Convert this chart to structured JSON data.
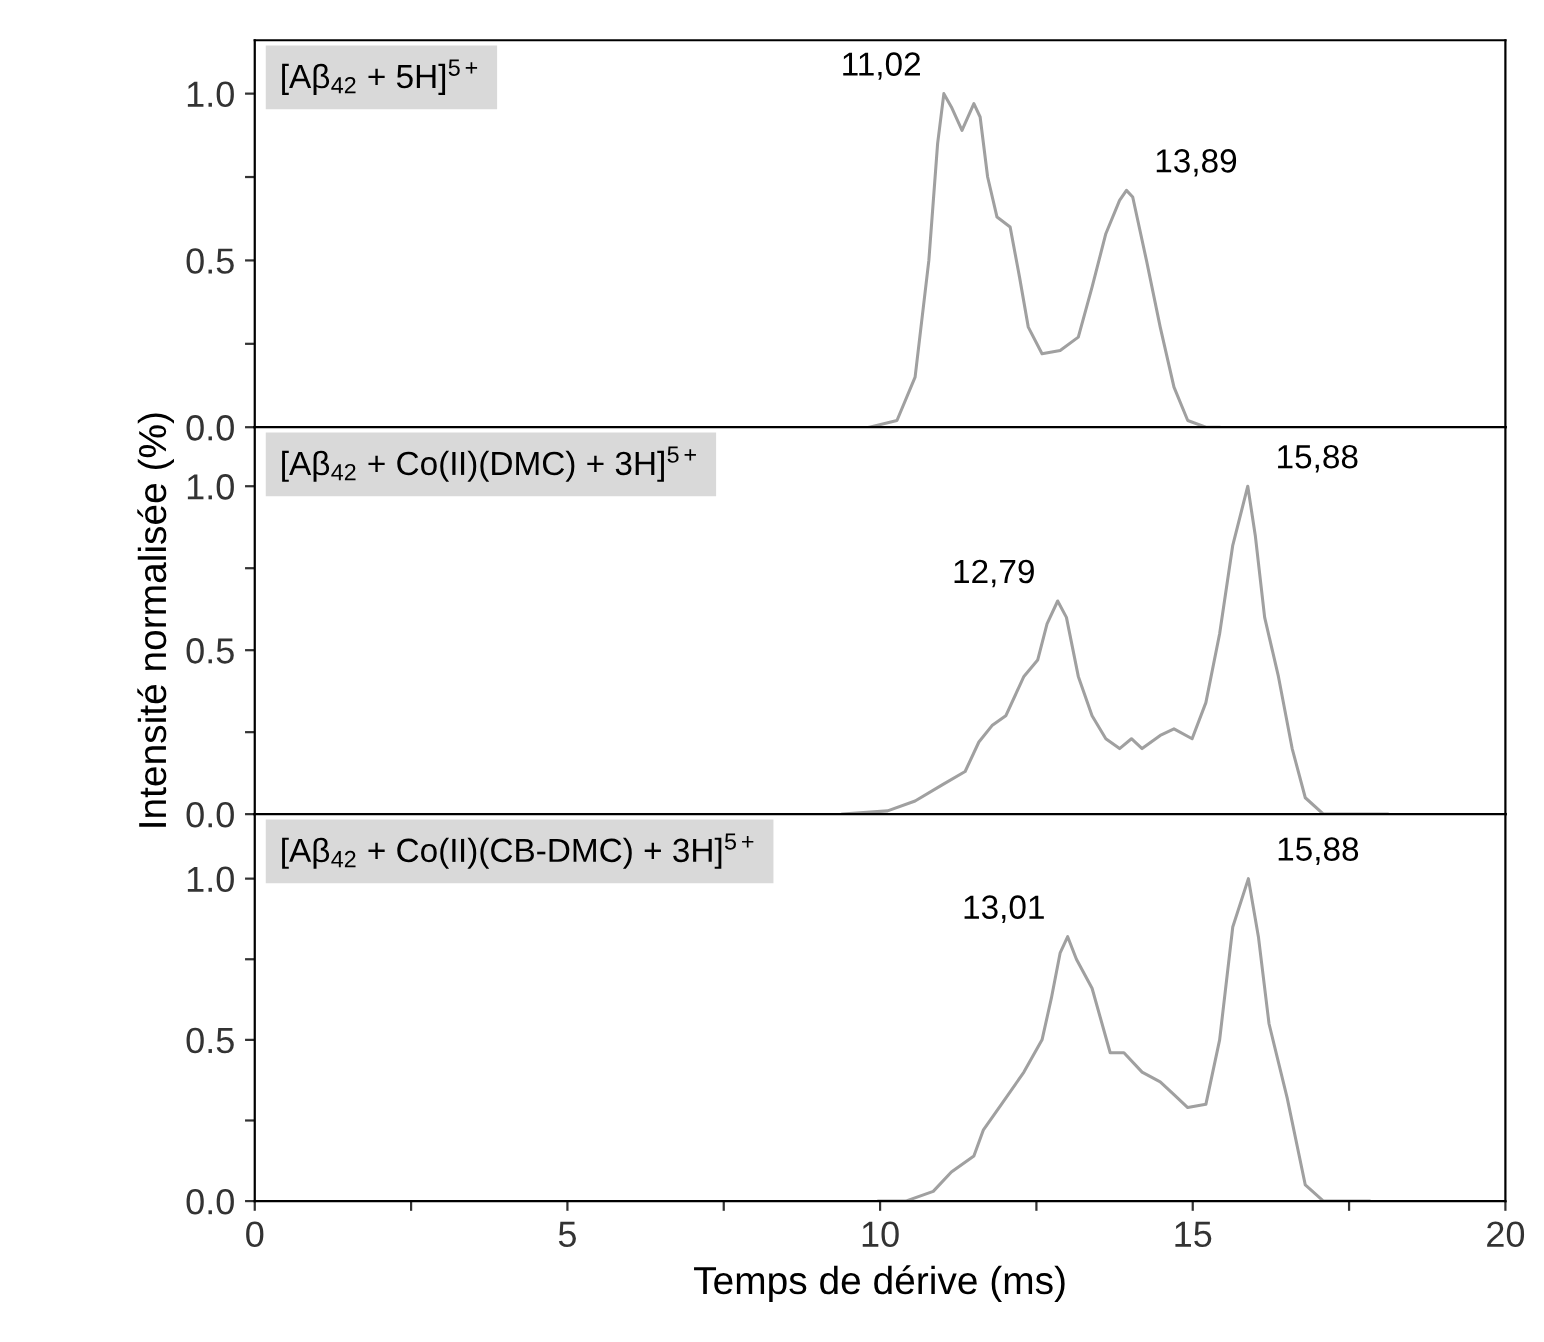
{
  "chart_data": [
    {
      "type": "line",
      "tick_labels": "y",
      "xlim": [
        0,
        20
      ],
      "ylim": [
        0,
        1.16
      ],
      "yticks": [
        {
          "value": 0,
          "label": "0.0"
        },
        {
          "value": 0.25,
          "label": null
        },
        {
          "value": 0.5,
          "label": "0.5"
        },
        {
          "value": 0.75,
          "label": null
        },
        {
          "value": 1,
          "label": "1.0"
        }
      ],
      "annotations": [
        "[Aβ$_{42}$ + 5H]$^{5+}$",
        {
          "text": "11,02",
          "x": 11.02,
          "y": 1.0
        },
        {
          "text": "13,89",
          "x": 13.94,
          "y": 0.71
        }
      ],
      "series": [
        {
          "color": "#a0a0a0",
          "x": [
            9.83,
            10.27,
            10.56,
            10.78,
            10.92,
            11.02,
            11.14,
            11.31,
            11.5,
            11.6,
            11.72,
            11.87,
            12.08,
            12.23,
            12.37,
            12.59,
            12.88,
            13.17,
            13.39,
            13.61,
            13.83,
            13.94,
            14.04,
            14.26,
            14.48,
            14.7,
            14.92,
            15.21,
            15.42
          ],
          "values": [
            0,
            0.02,
            0.15,
            0.5,
            0.85,
            1.0,
            0.96,
            0.89,
            0.97,
            0.93,
            0.75,
            0.63,
            0.6,
            0.45,
            0.3,
            0.22,
            0.23,
            0.27,
            0.42,
            0.58,
            0.68,
            0.71,
            0.69,
            0.5,
            0.3,
            0.12,
            0.02,
            0,
            0
          ]
        }
      ]
    },
    {
      "type": "line",
      "tick_labels": "y",
      "xlim": [
        0,
        20
      ],
      "ylim": [
        0,
        1.18
      ],
      "ylabel": "Intensité normalisée (%)",
      "yticks": [
        {
          "value": 0,
          "label": "0.0"
        },
        {
          "value": 0.25,
          "label": null
        },
        {
          "value": 0.5,
          "label": "0.5"
        },
        {
          "value": 0.75,
          "label": null
        },
        {
          "value": 1,
          "label": "1.0"
        }
      ],
      "annotations": [
        "[Aβ$_{42}$ + Co(II)(DMC) + 3H]$^{5+}$",
        {
          "text": "12,79",
          "x": 12.84,
          "y": 0.65
        },
        {
          "text": "15,88",
          "x": 15.88,
          "y": 1.0
        }
      ],
      "series": [
        {
          "color": "#a0a0a0",
          "x": [
            9.4,
            10.12,
            10.56,
            11.0,
            11.36,
            11.58,
            11.79,
            12.01,
            12.3,
            12.52,
            12.67,
            12.84,
            12.98,
            13.17,
            13.39,
            13.61,
            13.83,
            14.02,
            14.19,
            14.48,
            14.7,
            14.99,
            15.21,
            15.43,
            15.64,
            15.88,
            16.0,
            16.15,
            16.37,
            16.59,
            16.8,
            17.09,
            18.11
          ],
          "values": [
            0,
            0.01,
            0.04,
            0.09,
            0.13,
            0.22,
            0.27,
            0.3,
            0.42,
            0.47,
            0.58,
            0.65,
            0.6,
            0.42,
            0.3,
            0.23,
            0.2,
            0.23,
            0.2,
            0.24,
            0.26,
            0.23,
            0.34,
            0.55,
            0.82,
            1.0,
            0.85,
            0.6,
            0.42,
            0.2,
            0.05,
            0,
            0
          ]
        }
      ]
    },
    {
      "type": "line",
      "xlabel": "Temps de dérive (ms)",
      "xlim": [
        0,
        20
      ],
      "ylim": [
        0,
        1.2
      ],
      "xticks": [
        0,
        {
          "value": 2.5,
          "label": null
        },
        5,
        {
          "value": 7.5,
          "label": null
        },
        10,
        {
          "value": 12.5,
          "label": null
        },
        15,
        {
          "value": 17.5,
          "label": null
        },
        20
      ],
      "yticks": [
        {
          "value": 0,
          "label": "0.0"
        },
        {
          "value": 0.25,
          "label": null
        },
        {
          "value": 0.5,
          "label": "0.5"
        },
        {
          "value": 0.75,
          "label": null
        },
        {
          "value": 1,
          "label": "1.0"
        }
      ],
      "annotations": [
        "[Aβ$_{42}$ + Co(II)(CB-DMC) + 3H]$^{5+}$",
        {
          "text": "13,01",
          "x": 13.0,
          "y": 0.82
        },
        {
          "text": "15,88",
          "x": 15.89,
          "y": 1.0
        }
      ],
      "series": [
        {
          "color": "#a0a0a0",
          "x": [
            9.98,
            10.41,
            10.85,
            11.14,
            11.5,
            11.65,
            11.94,
            12.3,
            12.59,
            12.74,
            12.88,
            13.0,
            13.14,
            13.39,
            13.68,
            13.9,
            14.19,
            14.48,
            14.7,
            14.92,
            15.21,
            15.43,
            15.64,
            15.89,
            16.05,
            16.22,
            16.51,
            16.8,
            17.09,
            17.82
          ],
          "values": [
            0,
            0,
            0.03,
            0.09,
            0.14,
            0.22,
            0.3,
            0.4,
            0.5,
            0.63,
            0.77,
            0.82,
            0.75,
            0.66,
            0.46,
            0.46,
            0.4,
            0.37,
            0.33,
            0.29,
            0.3,
            0.5,
            0.85,
            1.0,
            0.82,
            0.55,
            0.32,
            0.05,
            0,
            0
          ]
        }
      ]
    }
  ]
}
